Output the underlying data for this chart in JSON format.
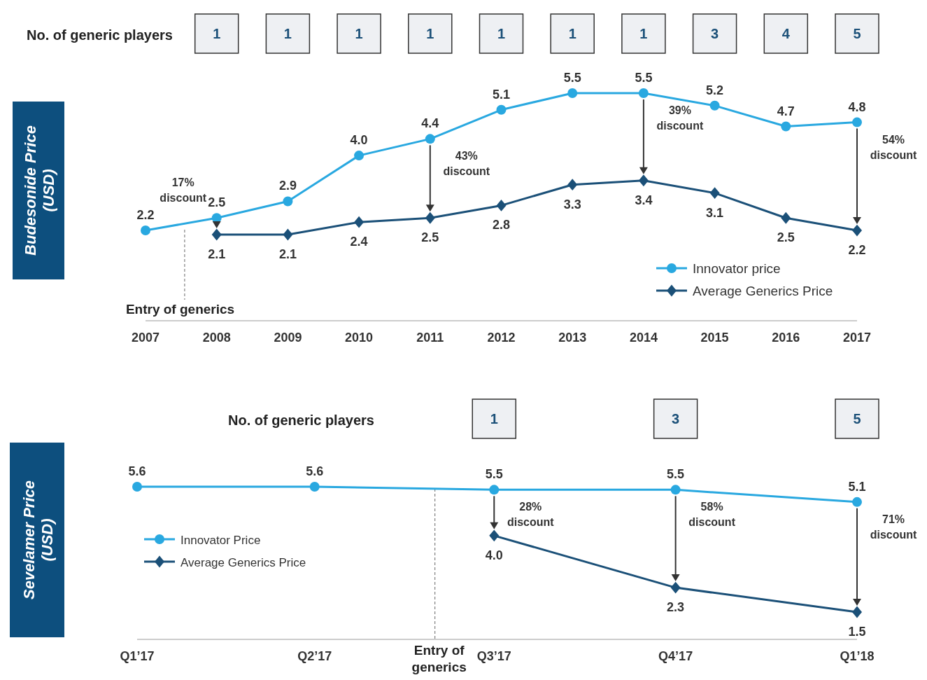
{
  "chart_data": [
    {
      "type": "line",
      "ylabel": "Budesonide Price (USD)",
      "x": [
        2007,
        2008,
        2009,
        2010,
        2011,
        2012,
        2013,
        2014,
        2015,
        2016,
        2017
      ],
      "xlim": [
        2007,
        2017
      ],
      "xticks": [
        2007,
        2008,
        2009,
        2010,
        2011,
        2012,
        2013,
        2014,
        2015,
        2016,
        2017
      ],
      "legend": "bottom right",
      "grid": false,
      "series": [
        {
          "name": "Innovator price",
          "color": "#29a8e0",
          "marker": "circle",
          "values": [
            2.2,
            2.5,
            2.9,
            4.0,
            4.4,
            5.1,
            5.5,
            5.5,
            5.2,
            4.7,
            4.8
          ],
          "value_labels": [
            "2.2",
            "2.5",
            "2.9",
            "4.0",
            "4.4",
            "5.1",
            "5.5",
            "5.5",
            "5.2",
            "4.7",
            "4.8"
          ]
        },
        {
          "name": "Average Generics Price",
          "color": "#1b5078",
          "marker": "diamond",
          "x": [
            2008,
            2009,
            2010,
            2011,
            2012,
            2013,
            2014,
            2015,
            2016,
            2017
          ],
          "values": [
            2.1,
            2.1,
            2.4,
            2.5,
            2.8,
            3.3,
            3.4,
            3.1,
            2.5,
            2.2
          ],
          "value_labels": [
            "2.1",
            "2.1",
            "2.4",
            "2.5",
            "2.8",
            "3.3",
            "3.4",
            "3.1",
            "2.5",
            "2.2"
          ]
        }
      ],
      "ref_lines": [
        {
          "axis": "x",
          "value": 2007.55,
          "label": "Entry of generics",
          "line_style": "dashed"
        }
      ],
      "annotations": [
        "No. of generic players",
        "1",
        "1",
        "1",
        "1",
        "1",
        "1",
        "1",
        "3",
        "4",
        "5",
        {
          "text": "17% discount",
          "x": 2008,
          "y": 2.5
        },
        {
          "text": "43% discount",
          "x": 2011,
          "y": 4.4
        },
        {
          "text": "39% discount",
          "x": 2014,
          "y": 5.5
        },
        {
          "text": "54% discount",
          "x": 2017,
          "y": 4.8
        }
      ]
    },
    {
      "type": "line",
      "ylabel": "Sevelamer Price (USD)",
      "x": [
        "2017-01",
        "2017-04",
        "2017-07",
        "2017-10",
        "2018-01"
      ],
      "xlim": [
        "2017-01",
        "2018-01"
      ],
      "xticks": [
        {
          "value": "2017-01",
          "label": "Q1’17"
        },
        {
          "value": "2017-04",
          "label": "Q2’17"
        },
        {
          "value": "2017-07",
          "label": "Q3’17"
        },
        {
          "value": "2017-10",
          "label": "Q4’17"
        },
        {
          "value": "2018-01",
          "label": "Q1’18"
        }
      ],
      "legend": "left",
      "grid": false,
      "series": [
        {
          "name": "Innovator Price",
          "color": "#29a8e0",
          "marker": "circle",
          "values": [
            5.6,
            5.6,
            5.5,
            5.5,
            5.1
          ],
          "value_labels": [
            "5.6",
            "5.6",
            "5.5",
            "5.5",
            "5.1"
          ]
        },
        {
          "name": "Average Generics Price",
          "color": "#1b5078",
          "marker": "diamond",
          "x": [
            "2017-07",
            "2017-10",
            "2018-01"
          ],
          "values": [
            4.0,
            2.3,
            1.5
          ],
          "value_labels": [
            "4.0",
            "2.3",
            "1.5"
          ]
        }
      ],
      "ref_lines": [
        {
          "axis": "x",
          "value": "2017-06-01",
          "label": "Entry of generics",
          "line_style": "dashed"
        }
      ],
      "annotations": [
        "No. of generic players",
        "1",
        "3",
        "5",
        {
          "text": "28% discount",
          "x": "2017-07",
          "y": 5.5
        },
        {
          "text": "58% discount",
          "x": "2017-10",
          "y": 5.5
        },
        {
          "text": "71% discount",
          "x": "2018-01",
          "y": 5.1
        }
      ]
    }
  ]
}
